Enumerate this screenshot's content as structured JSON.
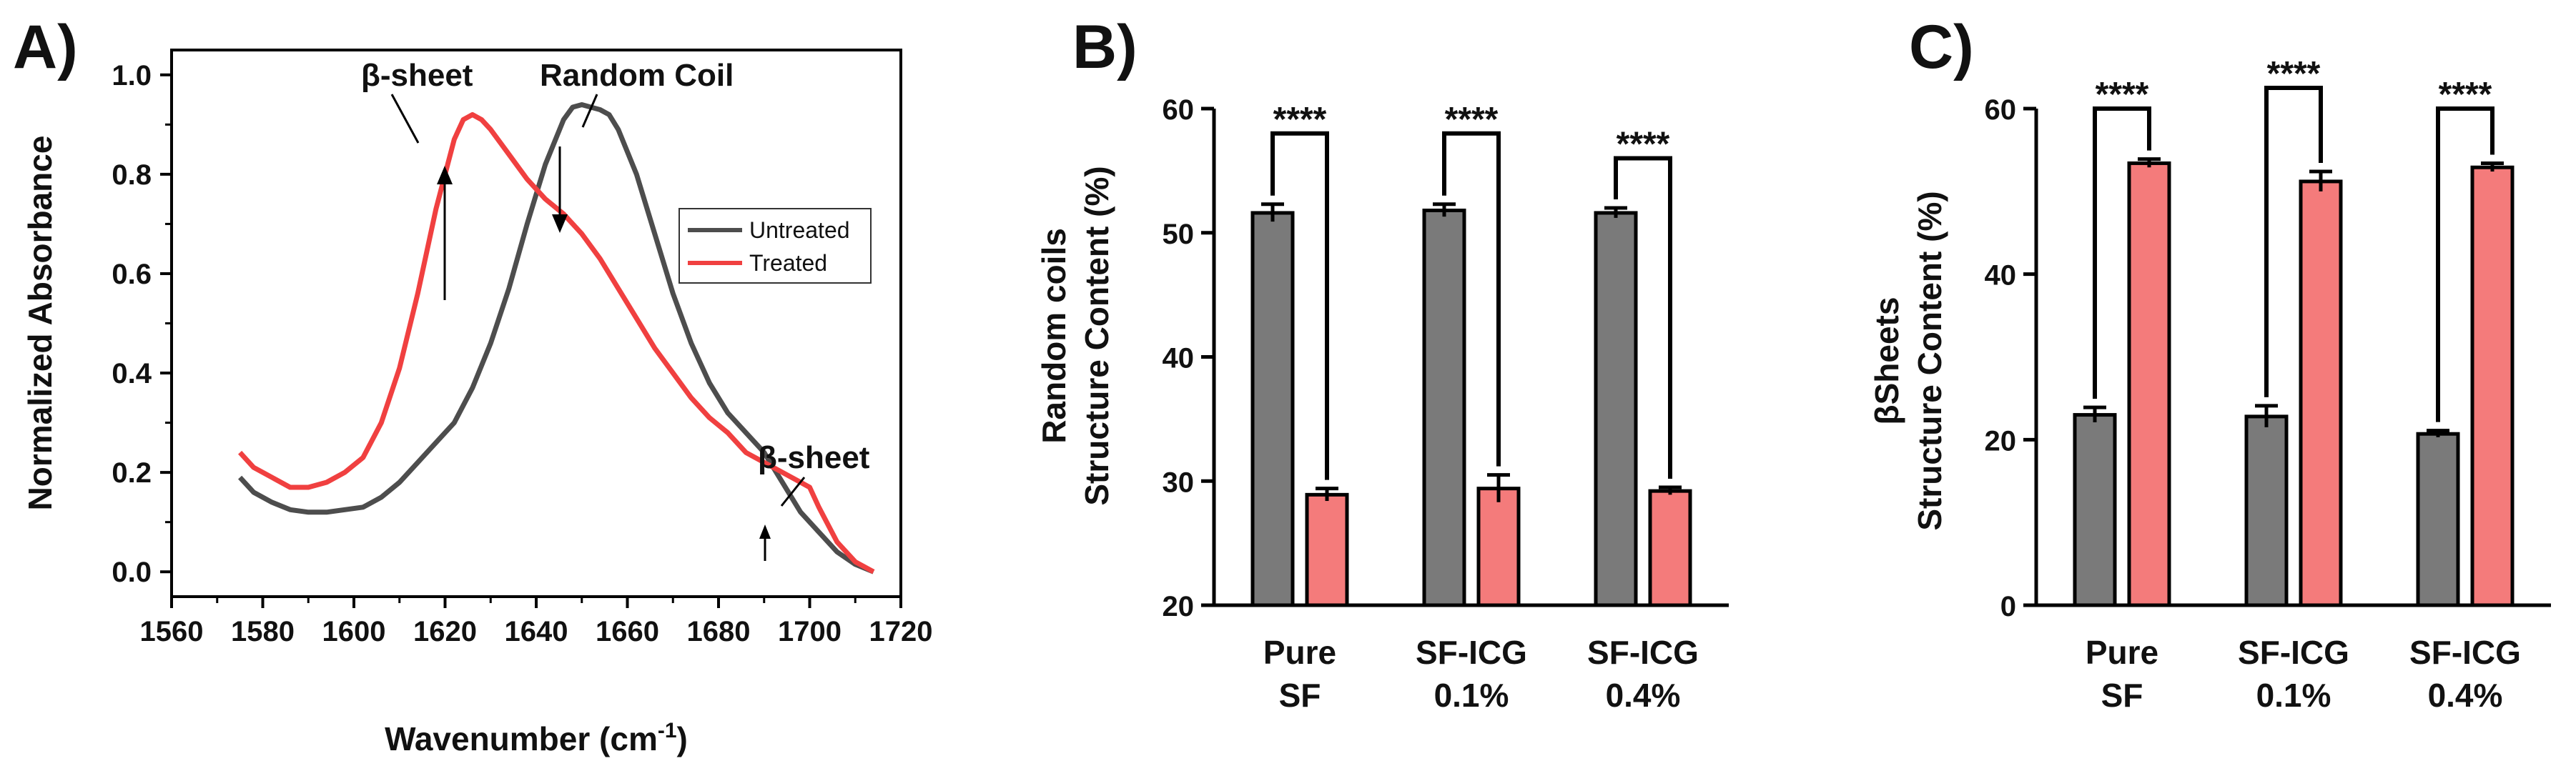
{
  "figure": {
    "labels": {
      "a": "A)",
      "b": "B)",
      "c": "C)"
    }
  },
  "chart_data": [
    {
      "type": "line",
      "xlabel_main": "Wavenumber (cm",
      "xlabel_sup": "-1",
      "xlabel_end": ")",
      "ylabel": "Normalized Absorbance",
      "xlim": [
        1560,
        1720
      ],
      "ylim": [
        -0.05,
        1.05
      ],
      "xticks": [
        "1560",
        "1580",
        "1600",
        "1620",
        "1640",
        "1660",
        "1680",
        "1700",
        "1720"
      ],
      "yticks": [
        "0.0",
        "0.2",
        "0.4",
        "0.6",
        "0.8",
        "1.0"
      ],
      "annotations": {
        "beta_top": "β-sheet",
        "random_coil": "Random Coil",
        "beta_right": "β-sheet"
      },
      "legend": {
        "untreated": "Untreated",
        "treated": "Treated"
      },
      "colors": {
        "untreated": "#4d4d4d",
        "treated": "#f04040"
      },
      "series": [
        {
          "name": "Untreated",
          "x": [
            1575,
            1578,
            1582,
            1586,
            1590,
            1594,
            1598,
            1602,
            1606,
            1610,
            1614,
            1618,
            1622,
            1626,
            1630,
            1634,
            1638,
            1642,
            1646,
            1648,
            1650,
            1652,
            1654,
            1656,
            1658,
            1662,
            1666,
            1670,
            1674,
            1678,
            1682,
            1686,
            1690,
            1694,
            1698,
            1702,
            1706,
            1710,
            1714
          ],
          "y": [
            0.19,
            0.16,
            0.14,
            0.125,
            0.12,
            0.12,
            0.125,
            0.13,
            0.15,
            0.18,
            0.22,
            0.26,
            0.3,
            0.37,
            0.46,
            0.57,
            0.7,
            0.82,
            0.91,
            0.935,
            0.94,
            0.935,
            0.93,
            0.92,
            0.89,
            0.8,
            0.68,
            0.56,
            0.46,
            0.38,
            0.32,
            0.28,
            0.24,
            0.18,
            0.12,
            0.08,
            0.04,
            0.015,
            0.0
          ]
        },
        {
          "name": "Treated",
          "x": [
            1575,
            1578,
            1582,
            1586,
            1590,
            1594,
            1598,
            1602,
            1606,
            1610,
            1614,
            1618,
            1622,
            1624,
            1626,
            1628,
            1630,
            1634,
            1638,
            1642,
            1646,
            1650,
            1654,
            1658,
            1662,
            1666,
            1670,
            1674,
            1678,
            1682,
            1686,
            1690,
            1694,
            1698,
            1700,
            1702,
            1706,
            1710,
            1714
          ],
          "y": [
            0.24,
            0.21,
            0.19,
            0.17,
            0.17,
            0.18,
            0.2,
            0.23,
            0.3,
            0.41,
            0.56,
            0.73,
            0.87,
            0.91,
            0.92,
            0.91,
            0.89,
            0.84,
            0.79,
            0.75,
            0.72,
            0.68,
            0.63,
            0.57,
            0.51,
            0.45,
            0.4,
            0.35,
            0.31,
            0.28,
            0.24,
            0.22,
            0.2,
            0.18,
            0.17,
            0.13,
            0.06,
            0.02,
            0.0
          ]
        }
      ]
    },
    {
      "type": "bar",
      "ylabel_line1": "Random coils",
      "ylabel_line2": "Structure Content (%)",
      "ylim": [
        20,
        60
      ],
      "yticks": [
        "20",
        "30",
        "40",
        "50",
        "60"
      ],
      "categories": [
        {
          "line1": "Pure",
          "line2": "SF"
        },
        {
          "line1": "SF-ICG",
          "line2": "0.1%"
        },
        {
          "line1": "SF-ICG",
          "line2": "0.4%"
        }
      ],
      "series": [
        {
          "name": "Untreated",
          "color": "#7a7a7a",
          "values": [
            51.6,
            51.8,
            51.6
          ],
          "errors": [
            0.7,
            0.5,
            0.4
          ]
        },
        {
          "name": "Treated",
          "color": "#f47b7b",
          "values": [
            28.9,
            29.4,
            29.2
          ],
          "errors": [
            0.5,
            1.1,
            0.3
          ]
        }
      ],
      "significance": {
        "label": "****",
        "bracket_tops": [
          58.0,
          58.0,
          56.0
        ]
      }
    },
    {
      "type": "bar",
      "ylabel_line1": "βSheets",
      "ylabel_line2": "Structure Content (%)",
      "ylim": [
        0,
        60
      ],
      "yticks": [
        "0",
        "20",
        "40",
        "60"
      ],
      "categories": [
        {
          "line1": "Pure",
          "line2": "SF"
        },
        {
          "line1": "SF-ICG",
          "line2": "0.1%"
        },
        {
          "line1": "SF-ICG",
          "line2": "0.4%"
        }
      ],
      "series": [
        {
          "name": "Untreated",
          "color": "#7a7a7a",
          "values": [
            23.0,
            22.8,
            20.7
          ],
          "errors": [
            0.9,
            1.3,
            0.4
          ]
        },
        {
          "name": "Treated",
          "color": "#f47b7b",
          "values": [
            53.4,
            51.2,
            52.9
          ],
          "errors": [
            0.5,
            1.2,
            0.5
          ]
        }
      ],
      "significance": {
        "label": "****",
        "bracket_tops": [
          60.0,
          62.5,
          60.0
        ]
      }
    }
  ]
}
